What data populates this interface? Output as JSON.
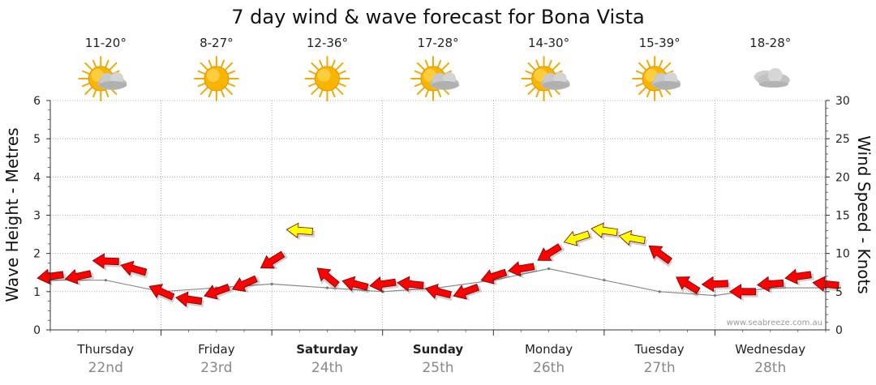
{
  "chart_data": {
    "type": "line",
    "title": "7 day wind & wave forecast for Bona Vista",
    "ylabel_left": "Wave Height - Metres",
    "ylabel_right": "Wind Speed - Knots",
    "ylim_left": [
      0,
      6
    ],
    "ylim_right": [
      0,
      30
    ],
    "yticks_left": [
      "0",
      "1",
      "2",
      "3",
      "4",
      "5",
      "6"
    ],
    "yticks_right": [
      "0",
      "5",
      "10",
      "15",
      "20",
      "25",
      "30"
    ],
    "grid": true,
    "credit": "www.seabreeze.com.au",
    "days": [
      {
        "name": "Thursday",
        "date": "22nd",
        "temp": "11-20°",
        "weather": "partly-cloudy",
        "bold": false
      },
      {
        "name": "Friday",
        "date": "23rd",
        "temp": "8-27°",
        "weather": "sunny",
        "bold": false
      },
      {
        "name": "Saturday",
        "date": "24th",
        "temp": "12-36°",
        "weather": "sunny",
        "bold": true
      },
      {
        "name": "Sunday",
        "date": "25th",
        "temp": "17-28°",
        "weather": "partly-cloudy",
        "bold": true
      },
      {
        "name": "Monday",
        "date": "26th",
        "temp": "14-30°",
        "weather": "partly-cloudy",
        "bold": false
      },
      {
        "name": "Tuesday",
        "date": "27th",
        "temp": "15-39°",
        "weather": "partly-cloudy",
        "bold": false
      },
      {
        "name": "Wednesday",
        "date": "28th",
        "temp": "18-28°",
        "weather": "cloudy",
        "bold": false
      }
    ],
    "series": [
      {
        "name": "Wind Speed (knots)",
        "x_days": [
          0,
          0.25,
          0.5,
          0.75,
          1,
          1.25,
          1.5,
          1.75,
          2,
          2.25,
          2.5,
          2.75,
          3,
          3.25,
          3.5,
          3.75,
          4,
          4.25,
          4.5,
          4.75,
          5,
          5.25,
          5.5,
          5.75,
          6,
          6.25,
          6.5,
          6.75,
          7
        ],
        "values": [
          7,
          7,
          9,
          8,
          5,
          4,
          5,
          6,
          9,
          13,
          7,
          6,
          6,
          6,
          5,
          5,
          7,
          8,
          10,
          12,
          13,
          12,
          10,
          6,
          6,
          5,
          6,
          7,
          6
        ],
        "arrow_color_by_speed": {
          "below_12": "#ff0000",
          "12_and_above": "#ffff00"
        }
      },
      {
        "name": "Wave Height (m)",
        "x_days": [
          0,
          0.5,
          1,
          1.5,
          2,
          2.5,
          3,
          3.5,
          4,
          4.5,
          5,
          5.5,
          6,
          6.5,
          7
        ],
        "values": [
          1.3,
          1.3,
          1.0,
          1.1,
          1.2,
          1.1,
          1.0,
          1.1,
          1.3,
          1.6,
          1.3,
          1.0,
          0.9,
          1.1,
          1.1
        ]
      }
    ]
  }
}
